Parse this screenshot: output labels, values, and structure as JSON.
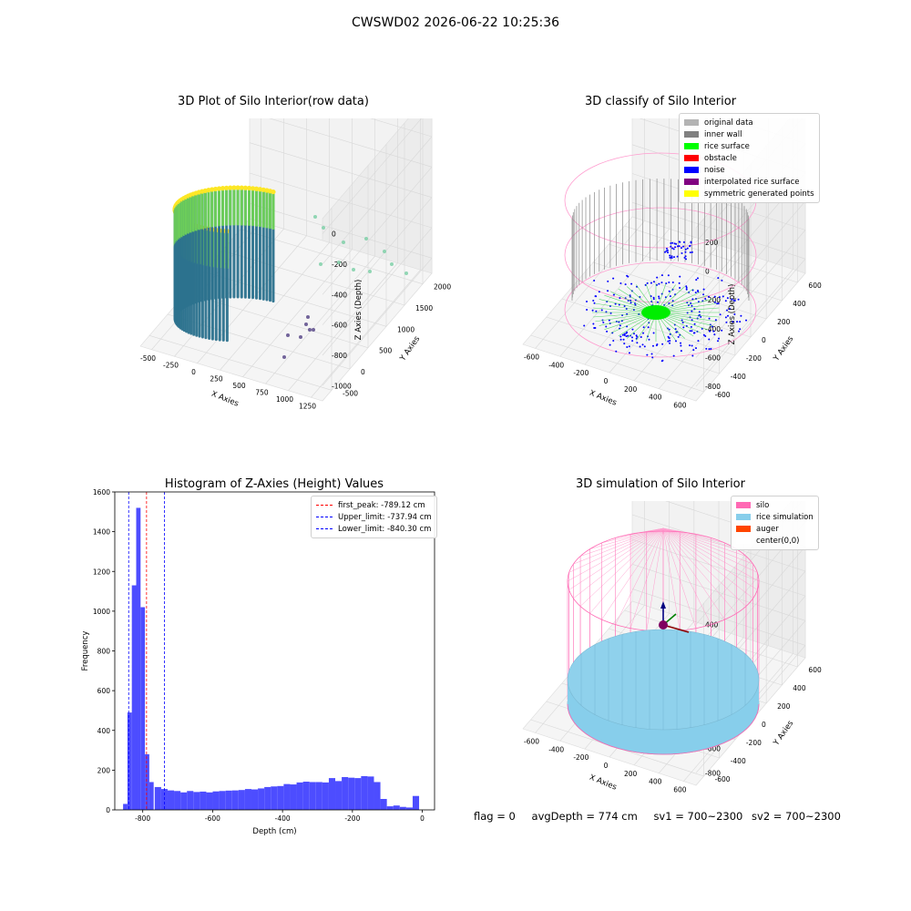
{
  "figure": {
    "suptitle": "CWSWD02 2026-06-22 10:25:36"
  },
  "chart_data": [
    {
      "type": "scatter",
      "projection": "3d",
      "title": "3D Plot of Silo Interior(row data)",
      "xlabel": "X Axies",
      "ylabel": "Y Axies",
      "zlabel": "Z Axies (Depth)",
      "x_ticks": [
        "-500",
        "-250",
        "0",
        "250",
        "500",
        "750",
        "1000",
        "1250"
      ],
      "y_ticks": [
        "-500",
        "0",
        "500",
        "1000",
        "1500",
        "2000"
      ],
      "z_ticks": [
        "0",
        "-200",
        "-400",
        "-600",
        "-800",
        "-1000"
      ],
      "colormap": "viridis"
    },
    {
      "type": "scatter",
      "projection": "3d",
      "title": "3D classify of Silo Interior",
      "xlabel": "X Axies",
      "ylabel": "Y Axies",
      "zlabel": "Z Axies (Depth)",
      "x_ticks": [
        "-600",
        "-400",
        "-200",
        "0",
        "200",
        "400",
        "600"
      ],
      "y_ticks": [
        "-600",
        "-400",
        "-200",
        "0",
        "200",
        "400",
        "600"
      ],
      "z_ticks": [
        "200",
        "0",
        "-200",
        "-400",
        "-600",
        "-800"
      ],
      "legend": [
        {
          "label": "original data",
          "color": "#b3b3b3"
        },
        {
          "label": "inner wall",
          "color": "#808080"
        },
        {
          "label": "rice surface",
          "color": "#00ff00"
        },
        {
          "label": "obstacle",
          "color": "#ff0000"
        },
        {
          "label": "noise",
          "color": "#0000ff"
        },
        {
          "label": "interpolated rice surface",
          "color": "#800080"
        },
        {
          "label": "symmetric generated points",
          "color": "#ffff00"
        }
      ]
    },
    {
      "type": "bar",
      "title": "Histogram of Z-Axies (Height) Values",
      "xlabel": "Depth (cm)",
      "ylabel": "Frequency",
      "xlim": [
        -880,
        35
      ],
      "ylim": [
        0,
        1600
      ],
      "x_ticks": [
        "-800",
        "-600",
        "-400",
        "-200",
        "0"
      ],
      "y_ticks": [
        "0",
        "200",
        "400",
        "600",
        "800",
        "1000",
        "1200",
        "1400",
        "1600"
      ],
      "bar_color": "#4d4dff",
      "bin_width": 12.5,
      "bins": [
        {
          "x": -850,
          "y": 30
        },
        {
          "x": -837.5,
          "y": 490
        },
        {
          "x": -825,
          "y": 1130
        },
        {
          "x": -812.5,
          "y": 1520
        },
        {
          "x": -800,
          "y": 1020
        },
        {
          "x": -787.5,
          "y": 280
        },
        {
          "x": -775,
          "y": 140
        },
        {
          "x": -762.5,
          "y": 115
        },
        {
          "x": -750,
          "y": 105
        },
        {
          "x": -737.5,
          "y": 98
        },
        {
          "x": -725,
          "y": 95
        },
        {
          "x": -712.5,
          "y": 88
        },
        {
          "x": -700,
          "y": 95
        },
        {
          "x": -687.5,
          "y": 90
        },
        {
          "x": -675,
          "y": 92
        },
        {
          "x": -662.5,
          "y": 88
        },
        {
          "x": -650,
          "y": 93
        },
        {
          "x": -637.5,
          "y": 95
        },
        {
          "x": -625,
          "y": 97
        },
        {
          "x": -612.5,
          "y": 98
        },
        {
          "x": -600,
          "y": 100
        },
        {
          "x": -587.5,
          "y": 105
        },
        {
          "x": -575,
          "y": 103
        },
        {
          "x": -562.5,
          "y": 108
        },
        {
          "x": -550,
          "y": 115
        },
        {
          "x": -537.5,
          "y": 118
        },
        {
          "x": -525,
          "y": 120
        },
        {
          "x": -512.5,
          "y": 130
        },
        {
          "x": -500,
          "y": 128
        },
        {
          "x": -487.5,
          "y": 138
        },
        {
          "x": -475,
          "y": 142
        },
        {
          "x": -462.5,
          "y": 140
        },
        {
          "x": -450,
          "y": 140
        },
        {
          "x": -437.5,
          "y": 138
        },
        {
          "x": -425,
          "y": 160
        },
        {
          "x": -412.5,
          "y": 145
        },
        {
          "x": -400,
          "y": 165
        },
        {
          "x": -387.5,
          "y": 162
        },
        {
          "x": -375,
          "y": 160
        },
        {
          "x": -362.5,
          "y": 170
        },
        {
          "x": -350,
          "y": 168
        },
        {
          "x": -337.5,
          "y": 140
        },
        {
          "x": -325,
          "y": 55
        },
        {
          "x": -312.5,
          "y": 18
        },
        {
          "x": -300,
          "y": 22
        },
        {
          "x": -287.5,
          "y": 15
        },
        {
          "x": -275,
          "y": 12
        },
        {
          "x": -262.5,
          "y": 70
        }
      ],
      "vlines": [
        {
          "label": "first_peak: -789.12 cm",
          "x": -789.12,
          "color": "#ff0000"
        },
        {
          "label": "Upper_limit: -737.94 cm",
          "x": -737.94,
          "color": "#0000ff"
        },
        {
          "label": "Lower_limit: -840.30 cm",
          "x": -840.3,
          "color": "#0000ff"
        }
      ]
    },
    {
      "type": "scatter",
      "projection": "3d",
      "title": "3D simulation of Silo Interior",
      "xlabel": "X Axies",
      "ylabel": "Y Axies",
      "zlabel": "Z Axies (Depth)",
      "x_ticks": [
        "-600",
        "-400",
        "-200",
        "0",
        "200",
        "400",
        "600"
      ],
      "y_ticks": [
        "-600",
        "-400",
        "-200",
        "0",
        "200",
        "400",
        "600"
      ],
      "z_ticks": [
        "400",
        "200",
        "0",
        "-200",
        "-400",
        "-600",
        "-800"
      ],
      "legend": [
        {
          "label": "silo",
          "color": "#ff69b4"
        },
        {
          "label": "rice simulation",
          "color": "#87ceeb"
        },
        {
          "label": "auger",
          "color": "#ff4500"
        },
        {
          "label": "center(0,0)",
          "color": "#ffffff"
        }
      ]
    }
  ],
  "status": {
    "flag": "flag = 0",
    "avg_depth": "avgDepth = 774 cm",
    "sv1": "sv1 = 700~2300",
    "sv2": "sv2 = 700~2300"
  }
}
